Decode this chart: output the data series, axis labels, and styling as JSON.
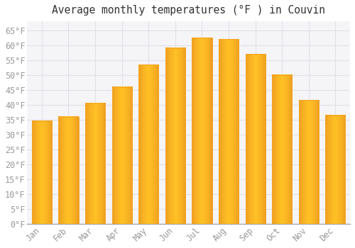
{
  "title": "Average monthly temperatures (°F ) in Couvin",
  "months": [
    "Jan",
    "Feb",
    "Mar",
    "Apr",
    "May",
    "Jun",
    "Jul",
    "Aug",
    "Sep",
    "Oct",
    "Nov",
    "Dec"
  ],
  "values": [
    34.5,
    36.0,
    40.5,
    46.0,
    53.5,
    59.0,
    62.5,
    62.0,
    57.0,
    50.0,
    41.5,
    36.5
  ],
  "bar_color_center": "#FFC125",
  "bar_color_edge": "#F5A623",
  "bar_color_dark": "#E89320",
  "background_color": "#FFFFFF",
  "plot_bg_color": "#F5F5F8",
  "grid_color": "#E0E0E8",
  "text_color": "#999999",
  "title_color": "#333333",
  "ylim": [
    0,
    68
  ],
  "yticks": [
    0,
    5,
    10,
    15,
    20,
    25,
    30,
    35,
    40,
    45,
    50,
    55,
    60,
    65
  ],
  "title_fontsize": 10.5,
  "tick_fontsize": 8.5
}
